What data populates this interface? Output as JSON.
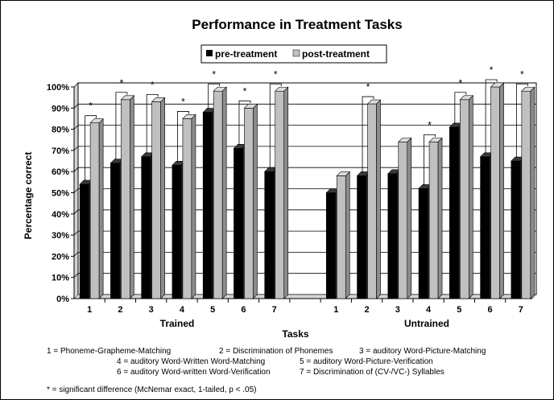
{
  "chart_data": {
    "type": "bar",
    "title": "Performance in Treatment Tasks",
    "ylabel": "Percentage correct",
    "xlabel": "Tasks",
    "ylim": [
      0,
      100
    ],
    "y_ticks": [
      "0%",
      "10%",
      "20%",
      "30%",
      "40%",
      "50%",
      "60%",
      "70%",
      "80%",
      "90%",
      "100%"
    ],
    "grid": true,
    "legend_position": "top-center",
    "series": [
      {
        "name": "pre-treatment",
        "color": "#000000"
      },
      {
        "name": "post-treatment",
        "color": "#c0c0c0"
      }
    ],
    "groups": [
      {
        "name": "Trained",
        "categories": [
          "1",
          "2",
          "3",
          "4",
          "5",
          "6",
          "7"
        ],
        "pre": [
          54,
          64,
          67,
          63,
          88,
          71,
          60
        ],
        "post": [
          83,
          94,
          93,
          85,
          98,
          90,
          98
        ],
        "significant": [
          true,
          true,
          true,
          true,
          true,
          true,
          true
        ]
      },
      {
        "name": "Untrained",
        "categories": [
          "1",
          "2",
          "3",
          "4",
          "5",
          "6",
          "7"
        ],
        "pre": [
          50,
          58,
          59,
          52,
          81,
          67,
          65
        ],
        "post": [
          58,
          92,
          74,
          74,
          94,
          100,
          98
        ],
        "significant": [
          false,
          true,
          false,
          true,
          true,
          true,
          true
        ]
      }
    ],
    "significance_marker": "*",
    "task_key": [
      "1 = Phoneme-Grapheme-Matching",
      "2 = Discrimination of Phonemes",
      "3 = auditory Word-Picture-Matching",
      "4 = auditory Word-Written Word-Matching",
      "5 = auditory Word-Picture-Verification",
      "6 = auditory Word-written Word-Verification",
      "7 = Discrimination of (CV-/VC-) Syllables"
    ],
    "footnote": "* = significant difference (McNemar exact, 1-tailed, p < .05)"
  }
}
